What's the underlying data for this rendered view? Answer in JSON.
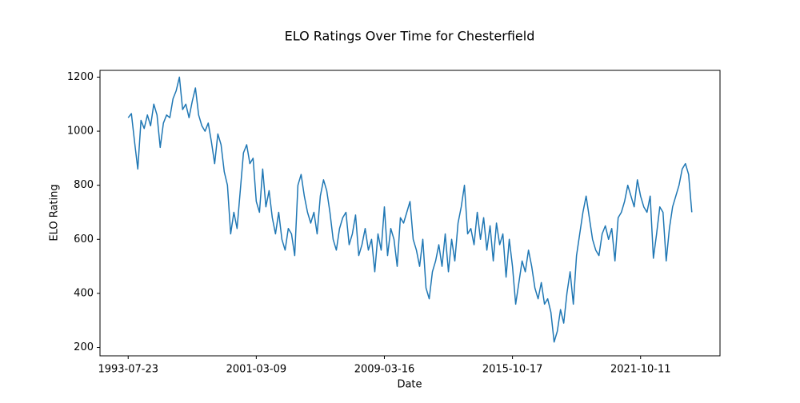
{
  "chart_data": {
    "type": "line",
    "title": "ELO Ratings Over Time for Chesterfield",
    "x_label": "Date",
    "y_label": "ELO Rating",
    "color": "#1f77b4",
    "categories": [
      "1993-07-23",
      null,
      null,
      null,
      null,
      null,
      null,
      null,
      null,
      null,
      null,
      null,
      null,
      null,
      null,
      null,
      null,
      null,
      null,
      null,
      null,
      null,
      null,
      null,
      null,
      null,
      null,
      null,
      null,
      null,
      null,
      null,
      null,
      null,
      null,
      null,
      null,
      null,
      null,
      null,
      "2001-03-09",
      null,
      null,
      null,
      null,
      null,
      null,
      null,
      null,
      null,
      null,
      null,
      null,
      null,
      null,
      null,
      null,
      null,
      null,
      null,
      null,
      null,
      null,
      null,
      null,
      null,
      null,
      null,
      null,
      null,
      null,
      null,
      null,
      null,
      null,
      null,
      null,
      null,
      null,
      null,
      "2009-03-16",
      null,
      null,
      null,
      null,
      null,
      null,
      null,
      null,
      null,
      null,
      null,
      null,
      null,
      null,
      null,
      null,
      null,
      null,
      null,
      null,
      null,
      null,
      null,
      null,
      null,
      null,
      null,
      null,
      null,
      null,
      null,
      null,
      null,
      null,
      null,
      null,
      null,
      null,
      null,
      "2015-10-17",
      null,
      null,
      null,
      null,
      null,
      null,
      null,
      null,
      null,
      null,
      null,
      null,
      null,
      null,
      null,
      null,
      null,
      null,
      null,
      null,
      null,
      null,
      null,
      null,
      null,
      null,
      null,
      null,
      null,
      null,
      null,
      null,
      null,
      null,
      null,
      null,
      null,
      null,
      null,
      "2021-10-11",
      null,
      null,
      null,
      null,
      null,
      null,
      null,
      null,
      null,
      null,
      null,
      null,
      null,
      null,
      null,
      null
    ],
    "values": [
      1050,
      1065,
      960,
      860,
      1040,
      1010,
      1060,
      1020,
      1100,
      1060,
      940,
      1030,
      1060,
      1050,
      1120,
      1150,
      1200,
      1080,
      1100,
      1050,
      1110,
      1160,
      1060,
      1020,
      1000,
      1030,
      960,
      880,
      990,
      950,
      850,
      800,
      620,
      700,
      640,
      780,
      920,
      950,
      880,
      900,
      740,
      700,
      860,
      720,
      780,
      680,
      620,
      700,
      600,
      560,
      640,
      620,
      540,
      800,
      840,
      760,
      700,
      660,
      700,
      620,
      760,
      820,
      780,
      700,
      600,
      560,
      640,
      680,
      700,
      580,
      620,
      690,
      540,
      580,
      640,
      560,
      600,
      480,
      620,
      560,
      720,
      540,
      640,
      600,
      500,
      680,
      660,
      700,
      740,
      600,
      560,
      500,
      600,
      420,
      380,
      480,
      520,
      580,
      500,
      620,
      480,
      600,
      520,
      660,
      720,
      800,
      620,
      640,
      580,
      700,
      600,
      680,
      560,
      650,
      520,
      660,
      580,
      620,
      460,
      600,
      500,
      360,
      440,
      520,
      480,
      560,
      500,
      420,
      380,
      440,
      360,
      380,
      330,
      220,
      260,
      340,
      290,
      400,
      480,
      360,
      540,
      620,
      700,
      760,
      680,
      600,
      560,
      540,
      620,
      650,
      600,
      640,
      520,
      680,
      700,
      740,
      800,
      760,
      720,
      820,
      760,
      720,
      700,
      760,
      530,
      620,
      720,
      700,
      520,
      640,
      720,
      760,
      800,
      860,
      880,
      840,
      700
    ],
    "ylim": [
      169,
      1225
    ],
    "yticks": [
      200,
      400,
      600,
      800,
      1000,
      1200
    ],
    "grid": false
  }
}
